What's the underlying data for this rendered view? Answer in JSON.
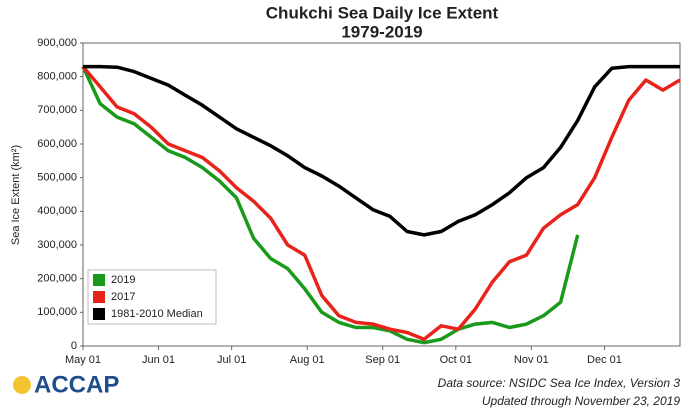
{
  "chart_data": {
    "type": "line",
    "title": "Chukchi Sea Daily Ice Extent",
    "subtitle": "1979-2019",
    "y_label": "Sea Ice Extent (km²)",
    "x": [
      0,
      7,
      14,
      21,
      28,
      35,
      42,
      49,
      56,
      63,
      70,
      77,
      84,
      91,
      98,
      105,
      112,
      119,
      126,
      133,
      140,
      147,
      154,
      161,
      168,
      175,
      182,
      189,
      196,
      203,
      210,
      217,
      224,
      231,
      238,
      245
    ],
    "series": [
      {
        "name": "2019",
        "color": "#1a9a1a",
        "values": [
          830000,
          720000,
          680000,
          660000,
          620000,
          580000,
          560000,
          530000,
          490000,
          440000,
          320000,
          260000,
          230000,
          170000,
          100000,
          70000,
          55000,
          55000,
          45000,
          20000,
          10000,
          20000,
          50000,
          65000,
          70000,
          55000,
          65000,
          90000,
          130000,
          330000,
          null,
          null,
          null,
          null,
          null,
          null
        ]
      },
      {
        "name": "2017",
        "color": "#e8231b",
        "values": [
          830000,
          770000,
          710000,
          690000,
          650000,
          600000,
          580000,
          560000,
          520000,
          470000,
          430000,
          380000,
          300000,
          270000,
          150000,
          90000,
          70000,
          65000,
          50000,
          40000,
          20000,
          60000,
          50000,
          110000,
          190000,
          250000,
          270000,
          350000,
          390000,
          420000,
          500000,
          620000,
          730000,
          790000,
          760000,
          790000
        ]
      },
      {
        "name": "1981-2010 Median",
        "color": "#000000",
        "values": [
          830000,
          830000,
          828000,
          815000,
          795000,
          775000,
          745000,
          715000,
          680000,
          645000,
          620000,
          595000,
          565000,
          530000,
          505000,
          475000,
          440000,
          405000,
          385000,
          340000,
          330000,
          340000,
          370000,
          390000,
          420000,
          455000,
          500000,
          530000,
          590000,
          670000,
          770000,
          825000,
          830000,
          830000,
          830000,
          830000
        ]
      }
    ],
    "xlim": [
      0,
      245
    ],
    "xticks": [
      {
        "value": 0,
        "label": "May 01"
      },
      {
        "value": 31,
        "label": "Jun 01"
      },
      {
        "value": 61,
        "label": "Jul 01"
      },
      {
        "value": 92,
        "label": "Aug 01"
      },
      {
        "value": 123,
        "label": "Sep 01"
      },
      {
        "value": 153,
        "label": "Oct 01"
      },
      {
        "value": 184,
        "label": "Nov 01"
      },
      {
        "value": 214,
        "label": "Dec 01"
      }
    ],
    "ylim": [
      0,
      900000
    ],
    "yticks": [
      0,
      {
        "value": 100000,
        "label": "100,000"
      },
      {
        "value": 200000,
        "label": "200,000"
      },
      {
        "value": 300000,
        "label": "300,000"
      },
      {
        "value": 400000,
        "label": "400,000"
      },
      {
        "value": 500000,
        "label": "500,000"
      },
      {
        "value": 600000,
        "label": "600,000"
      },
      {
        "value": 700000,
        "label": "700,000"
      },
      {
        "value": 800000,
        "label": "800,000"
      },
      {
        "value": 900000,
        "label": "900,000"
      }
    ],
    "legend": "lower left",
    "logo": "ACCAP",
    "source": "Data source: NSIDC Sea Ice Index, Version 3",
    "updated": "Updated through November 23, 2019"
  }
}
